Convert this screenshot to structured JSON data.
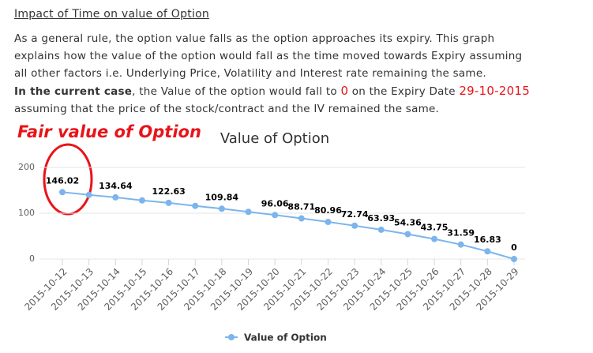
{
  "heading": "Impact of Time on value of Option",
  "paragraph": {
    "lines": [
      "As a general rule, the option value falls as the option approaches its expiry. This graph",
      "explains how the value of the option would fall as the time moved towards Expiry assuming",
      "all other factors i.e. Underlying Price, Volatility and Interest rate remaining the same."
    ],
    "current_case": {
      "bold": "In the current case",
      "text1": ", the Value of the option would fall to ",
      "value": "0",
      "text2": " on the Expiry Date ",
      "date": "29-10-2015"
    },
    "last_line": "assuming that the price of the stock/contract and the IV remained the same."
  },
  "chart_data": {
    "type": "line",
    "title": "Value of Option",
    "annotation": "Fair value of Option",
    "categories": [
      "2015-10-12",
      "2015-10-13",
      "2015-10-14",
      "2015-10-15",
      "2015-10-16",
      "2015-10-17",
      "2015-10-18",
      "2015-10-19",
      "2015-10-20",
      "2015-10-21",
      "2015-10-22",
      "2015-10-23",
      "2015-10-24",
      "2015-10-25",
      "2015-10-26",
      "2015-10-27",
      "2015-10-28",
      "2015-10-29"
    ],
    "series": [
      {
        "name": "Value of Option",
        "color": "#7cb5ec",
        "values": [
          146.02,
          140,
          134.64,
          128,
          122.63,
          116,
          109.84,
          103,
          96.06,
          88.71,
          80.96,
          72.74,
          63.93,
          54.36,
          43.75,
          31.59,
          16.83,
          0
        ],
        "value_labels": [
          "146.02",
          null,
          "134.64",
          null,
          "122.63",
          null,
          "109.84",
          null,
          "96.06",
          "88.71",
          "80.96",
          "72.74",
          "63.93",
          "54.36",
          "43.75",
          "31.59",
          "16.83",
          "0"
        ]
      }
    ],
    "ylim": [
      0,
      200
    ],
    "yticks": [
      0,
      100,
      200
    ],
    "grid": true,
    "legend": "bottom"
  }
}
